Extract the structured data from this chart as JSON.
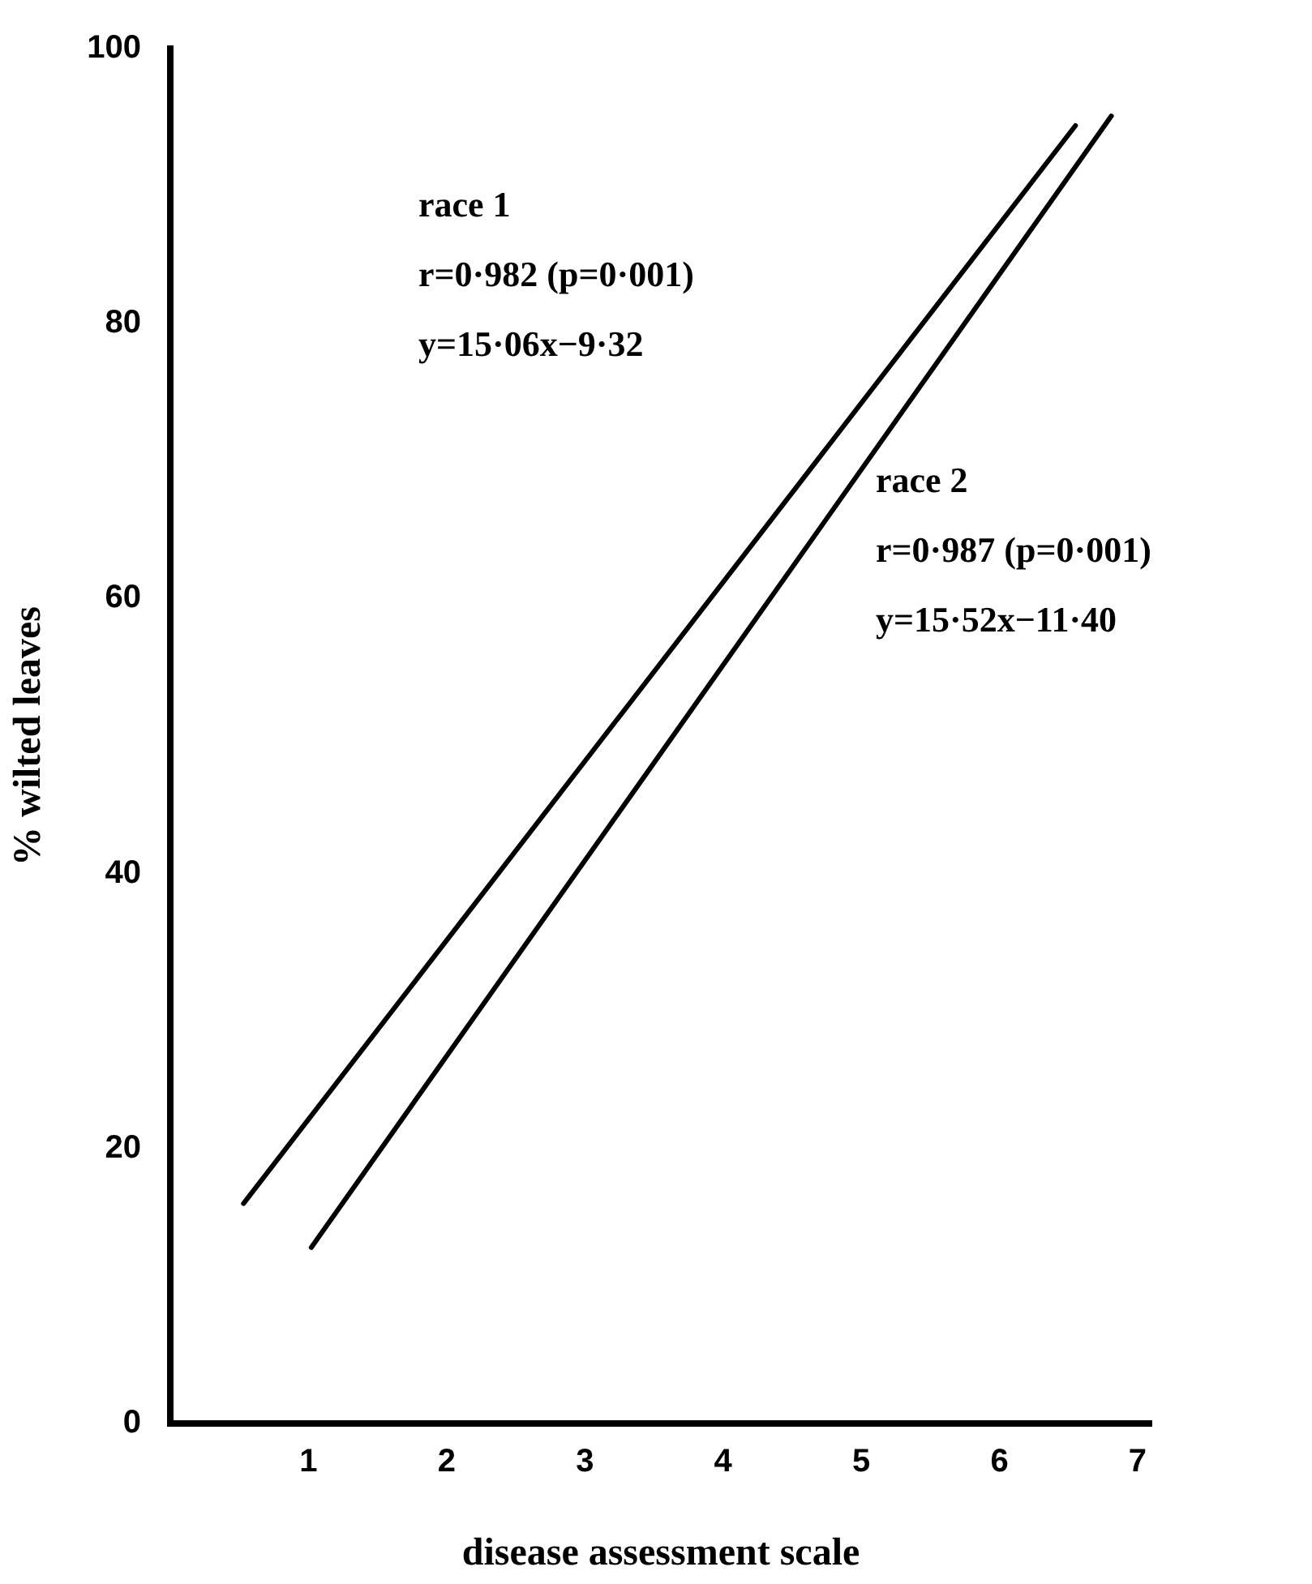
{
  "chart_data": {
    "type": "line",
    "xlabel": "disease assessment scale",
    "ylabel": "% wilted leaves",
    "xlim": [
      0,
      7.1
    ],
    "xticks": [
      1,
      2,
      3,
      4,
      5,
      6,
      7
    ],
    "ylim": [
      0,
      100
    ],
    "yticks": [
      0,
      20,
      40,
      60,
      80,
      100
    ],
    "grid": false,
    "legend": false,
    "marker": "none",
    "line_style": "solid",
    "series": [
      {
        "color": "#000000",
        "x": [
          0.53,
          6.55
        ],
        "values": [
          16,
          94.4
        ]
      },
      {
        "color": "#000000",
        "x": [
          1.02,
          6.81
        ],
        "values": [
          12.8,
          95.1
        ]
      }
    ],
    "annotations": [
      "race 1",
      "r=0·982 (p=0·001)",
      "y=15·06x−9·32",
      "race 2",
      "r=0·987 (p=0·001)",
      "y=15·52x−11·40"
    ]
  }
}
